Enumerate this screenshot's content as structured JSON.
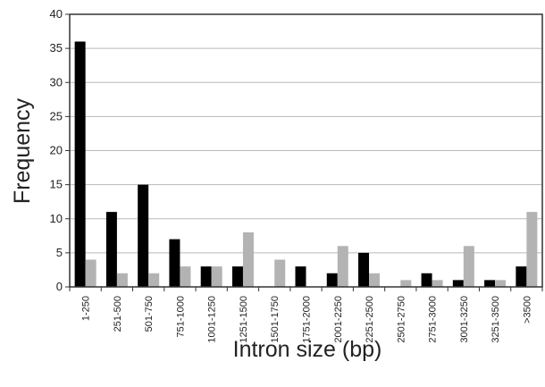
{
  "chart_data": {
    "type": "bar",
    "title": "",
    "xlabel": "Intron size (bp)",
    "ylabel": "Frequency",
    "ylim": [
      0,
      40
    ],
    "yticks": [
      0,
      5,
      10,
      15,
      20,
      25,
      30,
      35,
      40
    ],
    "grid": "horizontal",
    "legend": "none",
    "categories": [
      "1-250",
      "251-500",
      "501-750",
      "751-1000",
      "1001-1250",
      "1251-1500",
      "1501-1750",
      "1751-2000",
      "2001-2250",
      "2251-2500",
      "2501-2750",
      "2751-3000",
      "3001-3250",
      "3251-3500",
      ">3500"
    ],
    "series": [
      {
        "color": "#000000",
        "values": [
          36,
          11,
          15,
          7,
          3,
          3,
          0,
          3,
          2,
          5,
          0,
          2,
          1,
          1,
          3
        ]
      },
      {
        "color": "#b3b3b3",
        "values": [
          4,
          2,
          2,
          3,
          3,
          8,
          4,
          0,
          6,
          2,
          1,
          1,
          6,
          1,
          11
        ]
      }
    ]
  }
}
